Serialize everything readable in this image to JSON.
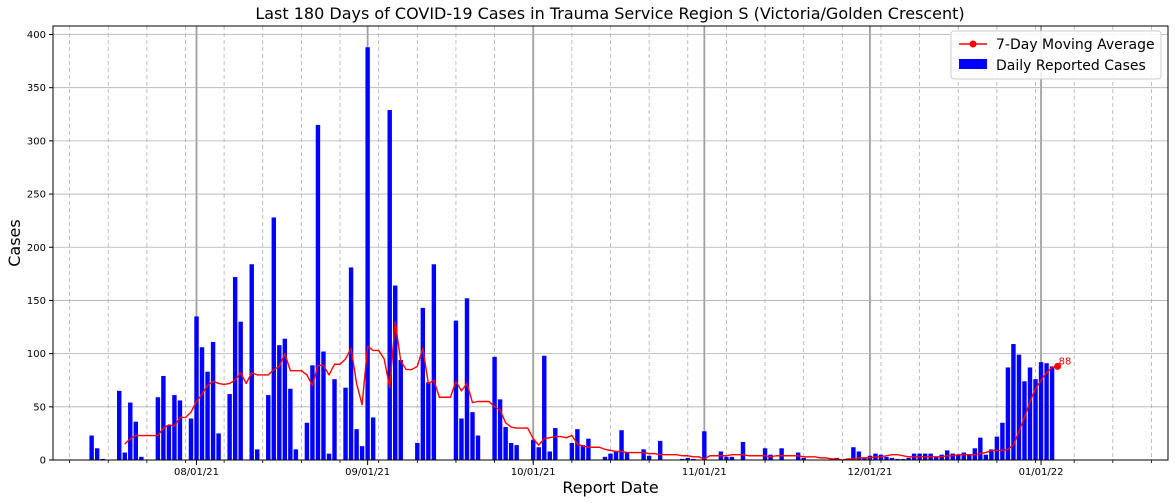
{
  "chart_data": {
    "type": "bar+line",
    "title": "Last 180 Days of COVID-19 Cases in Trauma Service Region S (Victoria/Golden Crescent)",
    "xlabel": "Report Date",
    "ylabel": "Cases",
    "ylim": [
      0,
      408
    ],
    "x_range": [
      "2021-07-06",
      "2022-01-24"
    ],
    "y_ticks": [
      0,
      50,
      100,
      150,
      200,
      250,
      300,
      350,
      400
    ],
    "x_ticks": [
      {
        "date": "2021-08-01",
        "label": "08/01/21"
      },
      {
        "date": "2021-09-01",
        "label": "09/01/21"
      },
      {
        "date": "2021-10-01",
        "label": "10/01/21"
      },
      {
        "date": "2021-11-01",
        "label": "11/01/21"
      },
      {
        "date": "2021-12-01",
        "label": "12/01/21"
      },
      {
        "date": "2022-01-01",
        "label": "01/01/22"
      }
    ],
    "grid": true,
    "legend_position": "top-right",
    "colors": {
      "bars": "#0000ff",
      "line": "#ff0000",
      "grid": "#b0b0b0",
      "major_grid": "#a0a0a0"
    },
    "start_date": "2021-07-13",
    "series": [
      {
        "name": "Daily Reported Cases",
        "type": "bar",
        "values": [
          23,
          11,
          1,
          0,
          0,
          65,
          7,
          54,
          36,
          3,
          0,
          0,
          59,
          79,
          33,
          61,
          56,
          0,
          39,
          135,
          106,
          83,
          111,
          25,
          0,
          62,
          172,
          130,
          0,
          184,
          10,
          0,
          61,
          228,
          108,
          114,
          67,
          10,
          0,
          35,
          89,
          315,
          102,
          6,
          76,
          0,
          68,
          181,
          29,
          13,
          388,
          40,
          0,
          0,
          329,
          164,
          94,
          0,
          0,
          16,
          143,
          73,
          184,
          0,
          0,
          0,
          131,
          39,
          152,
          45,
          23,
          0,
          0,
          97,
          57,
          31,
          16,
          14,
          0,
          0,
          19,
          12,
          98,
          8,
          30,
          0,
          0,
          16,
          29,
          14,
          20,
          0,
          0,
          3,
          6,
          8,
          28,
          7,
          0,
          0,
          10,
          4,
          0,
          18,
          0,
          0,
          0,
          1,
          2,
          1,
          0,
          27,
          0,
          0,
          8,
          3,
          3,
          0,
          17,
          0,
          0,
          0,
          11,
          5,
          0,
          11,
          0,
          0,
          7,
          2,
          0,
          0,
          0,
          0,
          0,
          2,
          0,
          0,
          12,
          8,
          2,
          4,
          6,
          5,
          3,
          2,
          1,
          1,
          2,
          6,
          6,
          6,
          6,
          3,
          5,
          9,
          6,
          5,
          7,
          5,
          11,
          21,
          5,
          10,
          22,
          35,
          87,
          109,
          99,
          74,
          87,
          76,
          92,
          91,
          88
        ]
      },
      {
        "name": "7-Day Moving Average",
        "type": "line",
        "values": [
          null,
          null,
          null,
          null,
          null,
          null,
          15,
          20,
          23,
          23,
          23,
          23,
          23,
          30,
          33,
          32,
          40,
          40,
          45,
          55,
          62,
          70,
          74,
          72,
          71,
          72,
          75,
          82,
          72,
          82,
          80,
          80,
          80,
          85,
          88,
          100,
          84,
          84,
          84,
          80,
          70,
          89,
          89,
          80,
          90,
          90,
          95,
          105,
          72,
          52,
          107,
          103,
          103,
          95,
          68,
          130,
          93,
          85,
          85,
          88,
          105,
          72,
          75,
          59,
          59,
          59,
          74,
          65,
          72,
          54,
          55,
          55,
          55,
          50,
          47,
          35,
          31,
          30,
          30,
          30,
          20,
          14,
          20,
          21,
          22,
          22,
          21,
          23,
          15,
          13,
          12,
          12,
          12,
          10,
          9,
          8,
          8,
          7,
          7,
          7,
          7,
          6,
          6,
          5,
          5,
          5,
          5,
          4,
          4,
          3,
          3,
          1,
          4,
          4,
          4,
          4,
          5,
          5,
          5,
          4,
          4,
          4,
          4,
          3,
          4,
          4,
          4,
          4,
          4,
          3,
          3,
          3,
          2,
          2,
          1,
          1,
          0,
          1,
          1,
          2,
          2,
          2,
          3,
          3,
          4,
          5,
          5,
          4,
          3,
          3,
          3,
          3,
          3,
          3,
          3,
          4,
          4,
          5,
          5,
          5,
          5,
          6,
          7,
          9,
          9,
          9,
          10,
          14,
          27,
          40,
          55,
          67,
          75,
          82,
          87,
          88
        ],
        "end_label": "88"
      }
    ]
  }
}
